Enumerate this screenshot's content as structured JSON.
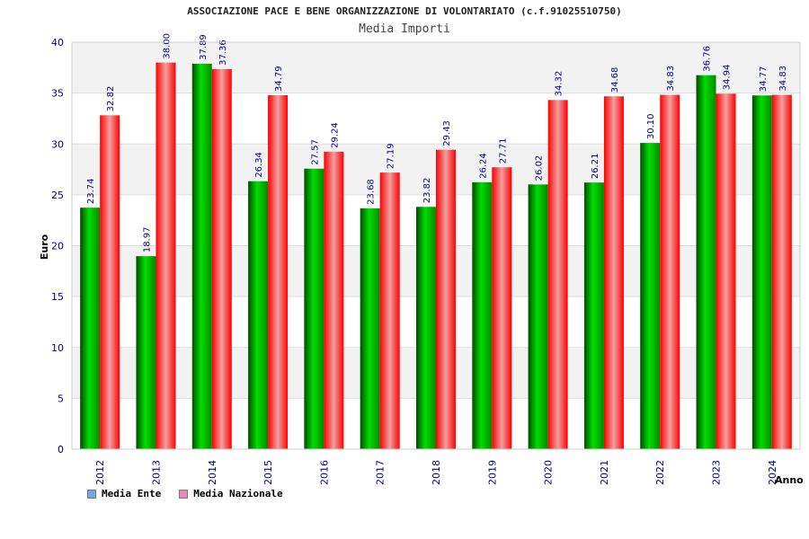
{
  "header": {
    "title": "ASSOCIAZIONE PACE E BENE ORGANIZZAZIONE DI VOLONTARIATO (c.f.91025510750)",
    "subtitle": "Media Importi"
  },
  "legend": [
    {
      "label": "Media Ente",
      "color": "#6fa8e8"
    },
    {
      "label": "Media Nazionale",
      "color": "#e887b8"
    }
  ],
  "chart_data": {
    "type": "bar",
    "title": "Media Importi",
    "xlabel": "Anno",
    "ylabel": "Euro",
    "ylim": [
      0,
      40
    ],
    "yticks": [
      0,
      5,
      10,
      15,
      20,
      25,
      30,
      35,
      40
    ],
    "grid": true,
    "legend_position": "bottom-left",
    "categories": [
      "2012",
      "2013",
      "2014",
      "2015",
      "2016",
      "2017",
      "2018",
      "2019",
      "2020",
      "2021",
      "2022",
      "2023",
      "2024"
    ],
    "series": [
      {
        "name": "Media Ente",
        "color": "#00c000",
        "values": [
          23.74,
          18.97,
          37.89,
          26.34,
          27.57,
          23.68,
          23.82,
          26.24,
          26.02,
          26.21,
          30.1,
          36.76,
          34.77
        ],
        "labels": [
          "23.74",
          "18.97",
          "37.89",
          "26.34",
          "27.57",
          "23.68",
          "23.82",
          "26.24",
          "26.02",
          "26.21",
          "30.10",
          "36.76",
          "34.77"
        ]
      },
      {
        "name": "Media Nazionale",
        "color": "#ff2020",
        "values": [
          32.82,
          38.0,
          37.36,
          34.79,
          29.24,
          27.19,
          29.43,
          27.71,
          34.32,
          34.68,
          34.83,
          34.94,
          34.83
        ],
        "labels": [
          "32.82",
          "38.00",
          "37.36",
          "34.79",
          "29.24",
          "27.19",
          "29.43",
          "27.71",
          "34.32",
          "34.68",
          "34.83",
          "34.94",
          "34.83"
        ]
      }
    ]
  }
}
